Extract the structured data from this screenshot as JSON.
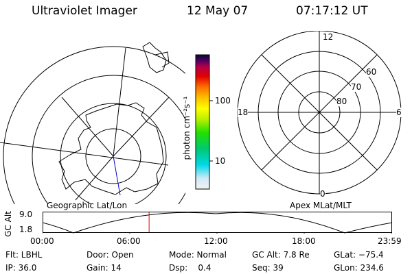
{
  "header": {
    "title": "Ultraviolet Imager",
    "date": "12 May 07",
    "time": "07:17:12 UT"
  },
  "colorbar": {
    "unit_label": "photon cm⁻²s⁻¹",
    "ticks": [
      "100",
      "10"
    ]
  },
  "geo_panel": {
    "label": "Geographic Lat/Lon"
  },
  "apex_panel": {
    "label": "Apex MLat/MLT",
    "mlt_labels": {
      "top": "12",
      "left": "18",
      "right": "6",
      "bottom": "0"
    },
    "lat_labels": [
      "60",
      "70",
      "80"
    ]
  },
  "gc_alt": {
    "axis_label": "GC Alt",
    "y_ticks": [
      "9.0",
      "1.8"
    ],
    "x_ticks": [
      "00:00",
      "06:00",
      "12:00",
      "18:00",
      "23:59"
    ],
    "current_time_frac": 0.304
  },
  "info": {
    "row1": [
      "Flt: LBHL",
      "Door: Open",
      "Mode: Normal",
      "GC Alt: 7.8 Re",
      "GLat: −75.4"
    ],
    "row2": [
      "IP: 36.0",
      "Gain: 14",
      "Dsp:    0.4",
      "Seq: 39",
      "GLon: 234.6"
    ]
  }
}
